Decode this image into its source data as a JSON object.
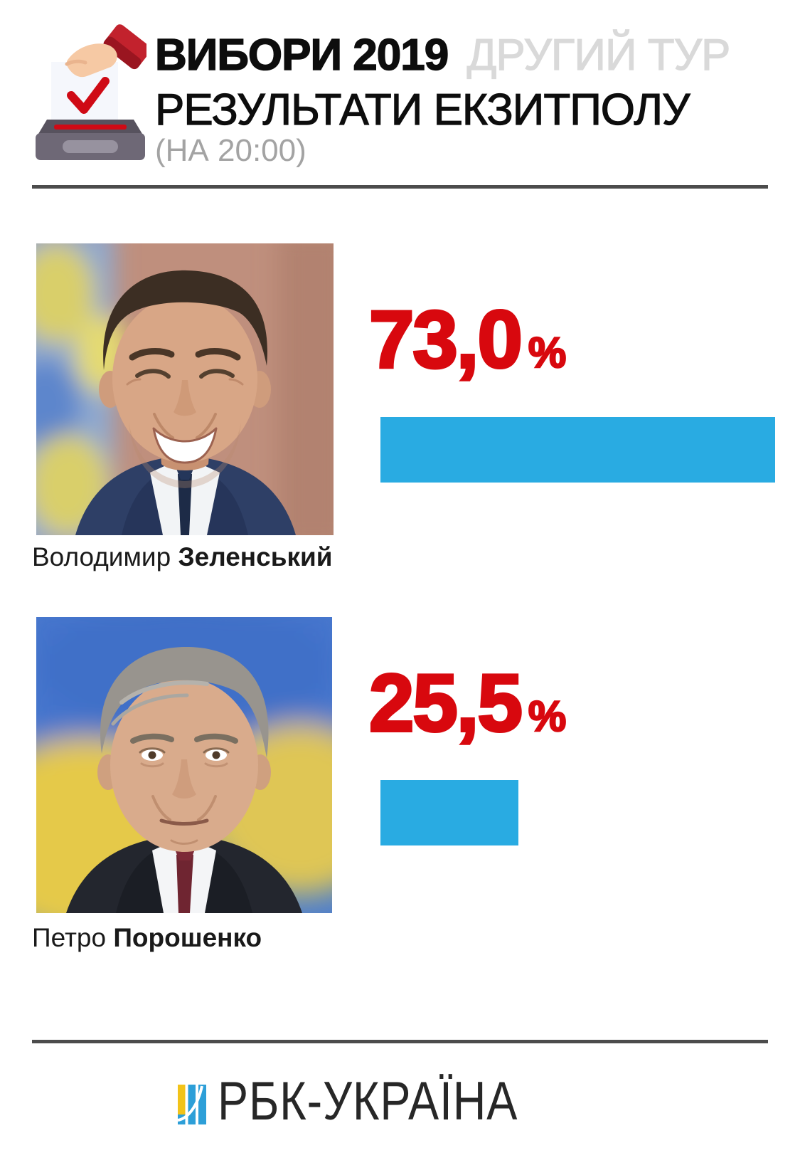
{
  "header": {
    "icon": "ballot-box-icon",
    "title_bold": "ВИБОРИ 2019",
    "title_light": "ДРУГИЙ ТУР",
    "subtitle": "РЕЗУЛЬТАТИ ЕКЗИТПОЛУ",
    "time_note": "(НА 20:00)"
  },
  "candidates": [
    {
      "first_name": "Володимир",
      "last_name": "Зеленський",
      "value": 73.0,
      "value_display": "73,0",
      "percent_sign": "%",
      "photo": "zelensky-portrait"
    },
    {
      "first_name": "Петро",
      "last_name": "Порошенко",
      "value": 25.5,
      "value_display": "25,5",
      "percent_sign": "%",
      "photo": "poroshenko-portrait"
    }
  ],
  "footer": {
    "logo_icon": "rbc-logo-icon",
    "logo_text": "РБК-УКРАЇНА"
  },
  "colors": {
    "accent_red": "#d8080e",
    "bar_blue": "#29abe2",
    "title_light_gray": "#d9d9d9",
    "note_gray": "#a3a3a3",
    "divider_gray": "#4c4c4c",
    "logo_dark": "#272727",
    "logo_yellow": "#f2c319",
    "logo_blue": "#2d9fd8"
  },
  "chart_data": {
    "type": "bar",
    "orientation": "horizontal",
    "title": "ВИБОРИ 2019 ДРУГИЙ ТУР — РЕЗУЛЬТАТИ ЕКЗИТПОЛУ (НА 20:00)",
    "categories": [
      "Володимир Зеленський",
      "Петро Порошенко"
    ],
    "values": [
      73.0,
      25.5
    ],
    "value_labels": [
      "73,0%",
      "25,5%"
    ],
    "xlim": [
      0,
      100
    ],
    "grid": false,
    "legend": false,
    "bar_color": "#29abe2",
    "label_color": "#d8080e"
  }
}
